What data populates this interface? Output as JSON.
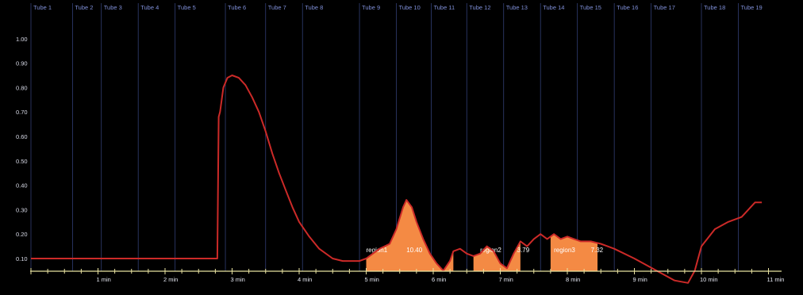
{
  "chart_data": {
    "type": "line",
    "title": "",
    "xlabel": "",
    "ylabel": "",
    "xlim": [
      0,
      11.3
    ],
    "ylim": [
      0,
      1.05
    ],
    "y_ticks": [
      0.1,
      0.2,
      0.3,
      0.4,
      0.5,
      0.6,
      0.7,
      0.8,
      0.9,
      1.0
    ],
    "y_tick_labels": [
      "0.10",
      "0.20",
      "0.30",
      "0.40",
      "0.50",
      "0.60",
      "0.70",
      "0.80",
      "0.90",
      "1.00"
    ],
    "x_ticks": [
      1,
      2,
      3,
      4,
      5,
      6,
      7,
      8,
      9,
      10,
      11
    ],
    "x_tick_labels": [
      "1 min",
      "2 min",
      "3 min",
      "4 min",
      "5 min",
      "6 min",
      "7 min",
      "8 min",
      "9 min",
      "10 min",
      "11 min"
    ],
    "tube_markers": [
      {
        "label": "Tube 1",
        "x": 0.0
      },
      {
        "label": "Tube 2",
        "x": 0.62
      },
      {
        "label": "Tube 3",
        "x": 1.05
      },
      {
        "label": "Tube 4",
        "x": 1.6
      },
      {
        "label": "Tube 5",
        "x": 2.15
      },
      {
        "label": "Tube 6",
        "x": 2.9
      },
      {
        "label": "Tube 7",
        "x": 3.5
      },
      {
        "label": "Tube 8",
        "x": 4.05
      },
      {
        "label": "Tube 9",
        "x": 4.9
      },
      {
        "label": "Tube 10",
        "x": 5.45
      },
      {
        "label": "Tube 11",
        "x": 5.97
      },
      {
        "label": "Tube 12",
        "x": 6.5
      },
      {
        "label": "Tube 13",
        "x": 7.05
      },
      {
        "label": "Tube 14",
        "x": 7.6
      },
      {
        "label": "Tube 15",
        "x": 8.15
      },
      {
        "label": "Tube 16",
        "x": 8.7
      },
      {
        "label": "Tube 17",
        "x": 9.25
      },
      {
        "label": "Tube 18",
        "x": 10.0
      },
      {
        "label": "Tube 19",
        "x": 10.55
      }
    ],
    "series": [
      {
        "color": "#cc2a28",
        "x": [
          0.0,
          0.5,
          1.0,
          1.5,
          2.0,
          2.5,
          2.78,
          2.8,
          2.82,
          2.87,
          2.93,
          3.0,
          3.1,
          3.2,
          3.3,
          3.4,
          3.5,
          3.6,
          3.7,
          3.8,
          3.9,
          4.0,
          4.15,
          4.3,
          4.5,
          4.65,
          4.8,
          4.9,
          5.0,
          5.1,
          5.2,
          5.35,
          5.45,
          5.55,
          5.6,
          5.68,
          5.75,
          5.85,
          5.95,
          6.05,
          6.15,
          6.25,
          6.3,
          6.4,
          6.5,
          6.6,
          6.7,
          6.8,
          6.9,
          7.0,
          7.1,
          7.2,
          7.3,
          7.4,
          7.5,
          7.6,
          7.7,
          7.8,
          7.9,
          8.0,
          8.1,
          8.2,
          8.35,
          8.5,
          8.7,
          9.0,
          9.2,
          9.4,
          9.6,
          9.8,
          9.9,
          10.0,
          10.2,
          10.4,
          10.6,
          10.8,
          10.9
        ],
        "y": [
          0.1,
          0.1,
          0.1,
          0.1,
          0.1,
          0.1,
          0.1,
          0.68,
          0.7,
          0.8,
          0.84,
          0.85,
          0.84,
          0.81,
          0.76,
          0.7,
          0.62,
          0.53,
          0.45,
          0.38,
          0.31,
          0.25,
          0.19,
          0.14,
          0.1,
          0.09,
          0.09,
          0.09,
          0.1,
          0.12,
          0.14,
          0.16,
          0.22,
          0.31,
          0.34,
          0.31,
          0.25,
          0.18,
          0.12,
          0.08,
          0.05,
          0.09,
          0.13,
          0.14,
          0.12,
          0.11,
          0.12,
          0.15,
          0.13,
          0.08,
          0.06,
          0.12,
          0.17,
          0.15,
          0.18,
          0.2,
          0.18,
          0.2,
          0.18,
          0.19,
          0.18,
          0.17,
          0.17,
          0.16,
          0.14,
          0.1,
          0.07,
          0.04,
          0.01,
          0.0,
          0.05,
          0.15,
          0.22,
          0.25,
          0.27,
          0.33,
          0.33
        ]
      }
    ],
    "regions": [
      {
        "label": "region1",
        "value": "10.40",
        "x_start": 5.0,
        "x_end": 6.3
      },
      {
        "label": "region2",
        "value": "3.79",
        "x_start": 6.6,
        "x_end": 7.3
      },
      {
        "label": "region3",
        "value": "7.32",
        "x_start": 7.75,
        "x_end": 8.45
      }
    ],
    "region_color": "#f48a44",
    "background": "#000000",
    "axis_color": "#e8e2a0",
    "grid": false
  }
}
